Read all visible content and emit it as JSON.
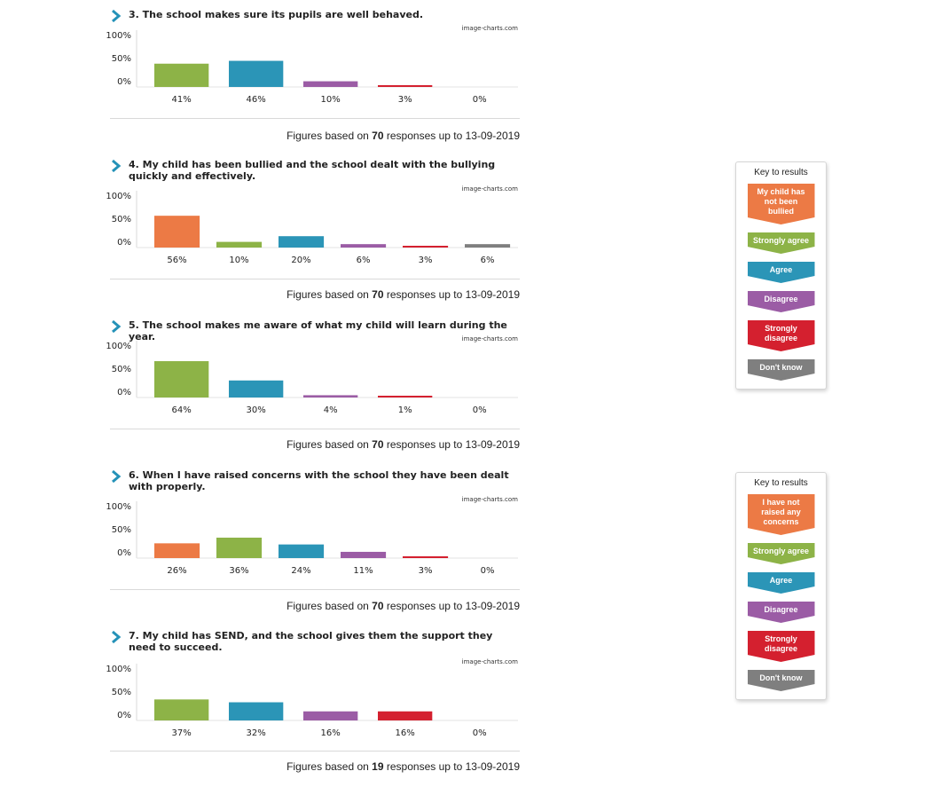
{
  "watermark": "image-charts.com",
  "footnote": {
    "prefix": "Figures based on",
    "suffix": "responses up to",
    "date": "13-09-2019"
  },
  "questions": [
    {
      "title": "3. The school makes sure its pupils are well behaved.",
      "responses": "70"
    },
    {
      "title": "4. My child has been bullied and the school dealt with the bullying quickly and effectively.",
      "responses": "70"
    },
    {
      "title": "5. The school makes me aware of what my child will learn during the year.",
      "responses": "70"
    },
    {
      "title": "6. When I have raised concerns with the school they have been dealt with properly.",
      "responses": "70"
    },
    {
      "title": "7. My child has SEND, and the school gives them the support they need to succeed.",
      "responses": "19"
    }
  ],
  "keys": [
    {
      "title": "Key to results",
      "items": [
        {
          "label": "My child has not been bullied",
          "color": "#ec7a45"
        },
        {
          "label": "Strongly agree",
          "color": "#8db347"
        },
        {
          "label": "Agree",
          "color": "#2b95b7"
        },
        {
          "label": "Disagree",
          "color": "#9b5ca5"
        },
        {
          "label": "Strongly disagree",
          "color": "#d4202f"
        },
        {
          "label": "Don't know",
          "color": "#7f7f7f"
        }
      ]
    },
    {
      "title": "Key to results",
      "items": [
        {
          "label": "I have not raised any concerns",
          "color": "#ec7a45"
        },
        {
          "label": "Strongly agree",
          "color": "#8db347"
        },
        {
          "label": "Agree",
          "color": "#2b95b7"
        },
        {
          "label": "Disagree",
          "color": "#9b5ca5"
        },
        {
          "label": "Strongly disagree",
          "color": "#d4202f"
        },
        {
          "label": "Don't know",
          "color": "#7f7f7f"
        }
      ]
    }
  ],
  "chart_data": [
    {
      "type": "bar",
      "ylim": [
        0,
        100
      ],
      "yticks": [
        "100%",
        "50%",
        "0%"
      ],
      "categories": [
        "Strongly agree",
        "Agree",
        "Disagree",
        "Strongly disagree",
        "Don't know"
      ],
      "values": [
        41,
        46,
        10,
        3,
        0
      ],
      "labels": [
        "41%",
        "46%",
        "10%",
        "3%",
        "0%"
      ],
      "colors": [
        "#8db347",
        "#2b95b7",
        "#9b5ca5",
        "#d4202f",
        "#7f7f7f"
      ]
    },
    {
      "type": "bar",
      "ylim": [
        0,
        100
      ],
      "yticks": [
        "100%",
        "50%",
        "0%"
      ],
      "categories": [
        "My child has not been bullied",
        "Strongly agree",
        "Agree",
        "Disagree",
        "Strongly disagree",
        "Don't know"
      ],
      "values": [
        56,
        10,
        20,
        6,
        3,
        6
      ],
      "labels": [
        "56%",
        "10%",
        "20%",
        "6%",
        "3%",
        "6%"
      ],
      "colors": [
        "#ec7a45",
        "#8db347",
        "#2b95b7",
        "#9b5ca5",
        "#d4202f",
        "#7f7f7f"
      ]
    },
    {
      "type": "bar",
      "ylim": [
        0,
        100
      ],
      "yticks": [
        "100%",
        "50%",
        "0%"
      ],
      "categories": [
        "Strongly agree",
        "Agree",
        "Disagree",
        "Strongly disagree",
        "Don't know"
      ],
      "values": [
        64,
        30,
        4,
        1,
        0
      ],
      "labels": [
        "64%",
        "30%",
        "4%",
        "1%",
        "0%"
      ],
      "colors": [
        "#8db347",
        "#2b95b7",
        "#9b5ca5",
        "#d4202f",
        "#7f7f7f"
      ]
    },
    {
      "type": "bar",
      "ylim": [
        0,
        100
      ],
      "yticks": [
        "100%",
        "50%",
        "0%"
      ],
      "categories": [
        "I have not raised any concerns",
        "Strongly agree",
        "Agree",
        "Disagree",
        "Strongly disagree",
        "Don't know"
      ],
      "values": [
        26,
        36,
        24,
        11,
        3,
        0
      ],
      "labels": [
        "26%",
        "36%",
        "24%",
        "11%",
        "3%",
        "0%"
      ],
      "colors": [
        "#ec7a45",
        "#8db347",
        "#2b95b7",
        "#9b5ca5",
        "#d4202f",
        "#7f7f7f"
      ]
    },
    {
      "type": "bar",
      "ylim": [
        0,
        100
      ],
      "yticks": [
        "100%",
        "50%",
        "0%"
      ],
      "categories": [
        "Strongly agree",
        "Agree",
        "Disagree",
        "Strongly disagree",
        "Don't know"
      ],
      "values": [
        37,
        32,
        16,
        16,
        0
      ],
      "labels": [
        "37%",
        "32%",
        "16%",
        "16%",
        "0%"
      ],
      "colors": [
        "#8db347",
        "#2b95b7",
        "#9b5ca5",
        "#d4202f",
        "#7f7f7f"
      ]
    }
  ]
}
